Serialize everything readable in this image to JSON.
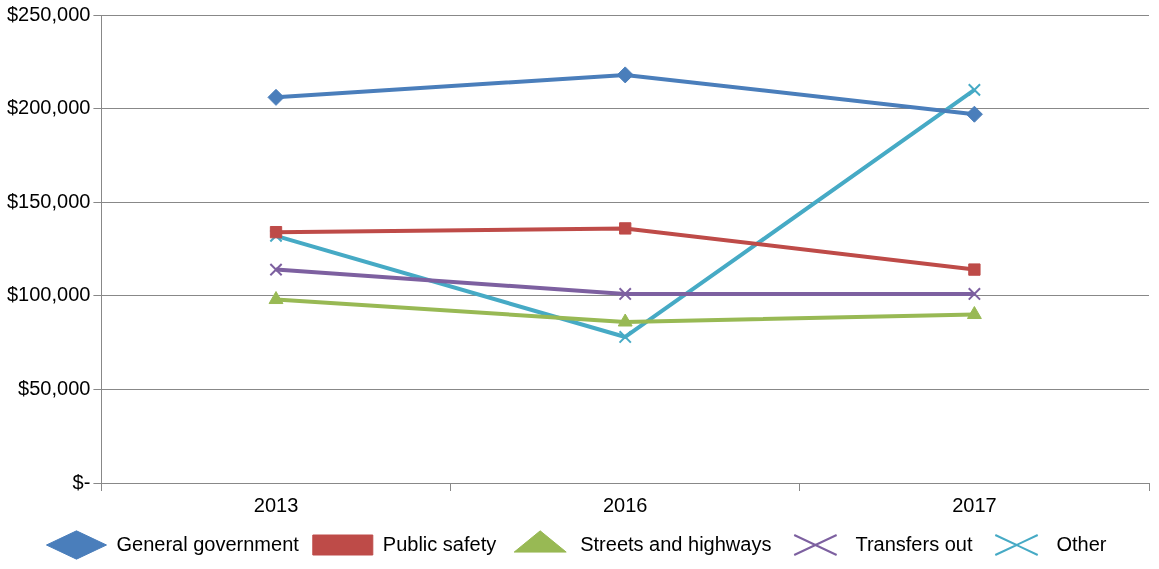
{
  "chart_data": {
    "type": "line",
    "categories": [
      "2013",
      "2016",
      "2017"
    ],
    "series": [
      {
        "name": "General government",
        "color": "#4a7ebb",
        "marker": "diamond",
        "values": [
          206000,
          218000,
          197000
        ]
      },
      {
        "name": "Public safety",
        "color": "#be4b48",
        "marker": "square",
        "values": [
          134000,
          136000,
          114000
        ]
      },
      {
        "name": "Streets and highways",
        "color": "#98b954",
        "marker": "triangle",
        "values": [
          98000,
          86000,
          90000
        ]
      },
      {
        "name": "Transfers out",
        "color": "#7d60a0",
        "marker": "cross",
        "values": [
          114000,
          101000,
          101000
        ]
      },
      {
        "name": "Other",
        "color": "#46aac5",
        "marker": "cross",
        "values": [
          132000,
          78000,
          210000
        ]
      }
    ],
    "ylim": [
      0,
      250000
    ],
    "yticks": [
      {
        "value": 0,
        "label": "$-"
      },
      {
        "value": 50000,
        "label": "$50,000"
      },
      {
        "value": 100000,
        "label": "$100,000"
      },
      {
        "value": 150000,
        "label": "$150,000"
      },
      {
        "value": 200000,
        "label": "$200,000"
      },
      {
        "value": 250000,
        "label": "$250,000"
      }
    ],
    "grid": "y",
    "legend": "bottom",
    "line_style": "solid"
  }
}
